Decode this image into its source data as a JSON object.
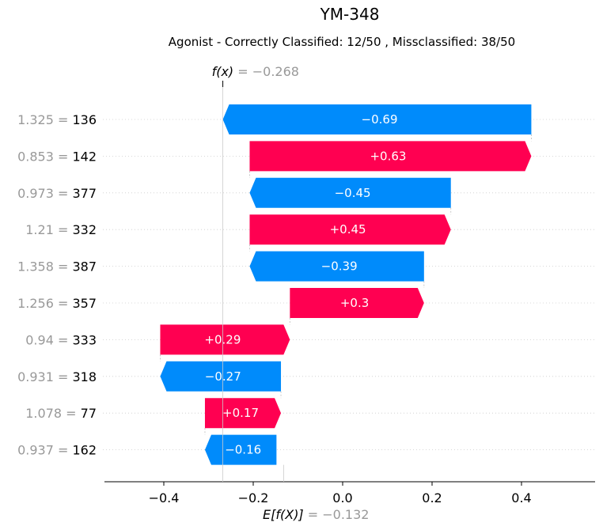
{
  "chart_data": {
    "type": "bar",
    "title": "YM-348",
    "subtitle": "Agonist - Correctly Classified: 12/50 , Missclassified: 38/50",
    "fx_label": "f(x) = −0.268",
    "expected_label": "E[f(X)] = −0.132",
    "fx": -0.268,
    "expected_value": -0.132,
    "xlim": [
      -0.53,
      0.56
    ],
    "xticks": [
      -0.4,
      -0.2,
      0.0,
      0.2,
      0.4
    ],
    "xtick_labels": [
      "−0.4",
      "−0.2",
      "0.0",
      "0.2",
      "0.4"
    ],
    "rows": [
      {
        "value_label": "1.325",
        "feature": "136",
        "contribution": -0.69,
        "label": "−0.69"
      },
      {
        "value_label": "0.853",
        "feature": "142",
        "contribution": 0.63,
        "label": "+0.63"
      },
      {
        "value_label": "0.973",
        "feature": "377",
        "contribution": -0.45,
        "label": "−0.45"
      },
      {
        "value_label": "1.21",
        "feature": "332",
        "contribution": 0.45,
        "label": "+0.45"
      },
      {
        "value_label": "1.358",
        "feature": "387",
        "contribution": -0.39,
        "label": "−0.39"
      },
      {
        "value_label": "1.256",
        "feature": "357",
        "contribution": 0.3,
        "label": "+0.3"
      },
      {
        "value_label": "0.94",
        "feature": "333",
        "contribution": 0.29,
        "label": "+0.29"
      },
      {
        "value_label": "0.931",
        "feature": "318",
        "contribution": -0.27,
        "label": "−0.27"
      },
      {
        "value_label": "1.078",
        "feature": "77",
        "contribution": 0.17,
        "label": "+0.17"
      },
      {
        "value_label": "0.937",
        "feature": "162",
        "contribution": -0.16,
        "label": "−0.16"
      }
    ],
    "colors": {
      "positive": "#ff0051",
      "negative": "#008bfb",
      "muted": "#999999"
    }
  }
}
